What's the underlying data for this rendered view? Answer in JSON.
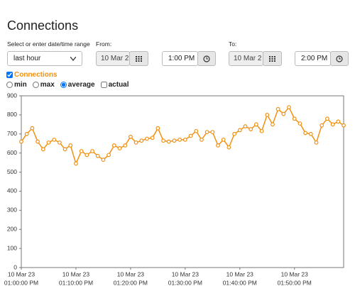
{
  "header": {
    "title": "Connections"
  },
  "range": {
    "label": "Select or enter date/time range",
    "preset": "last hour"
  },
  "from": {
    "label": "From:",
    "date": "10 Mar 2",
    "time": "1:00 PM"
  },
  "to": {
    "label": "To:",
    "date": "10 Mar 2",
    "time": "2:00 PM"
  },
  "series_checked": true,
  "aggregations": [
    {
      "label": "min",
      "control": "radio",
      "checked": false
    },
    {
      "label": "max",
      "control": "radio",
      "checked": false
    },
    {
      "label": "average",
      "control": "radio",
      "checked": true
    },
    {
      "label": "actual",
      "control": "checkbox",
      "checked": false
    }
  ],
  "chart_data": {
    "type": "line",
    "x": [
      "01:00:00 PM",
      "01:01:00 PM",
      "01:02:00 PM",
      "01:03:00 PM",
      "01:04:00 PM",
      "01:05:00 PM",
      "01:06:00 PM",
      "01:07:00 PM",
      "01:08:00 PM",
      "01:09:00 PM",
      "01:10:00 PM",
      "01:11:00 PM",
      "01:12:00 PM",
      "01:13:00 PM",
      "01:14:00 PM",
      "01:15:00 PM",
      "01:16:00 PM",
      "01:17:00 PM",
      "01:18:00 PM",
      "01:19:00 PM",
      "01:20:00 PM",
      "01:21:00 PM",
      "01:22:00 PM",
      "01:23:00 PM",
      "01:24:00 PM",
      "01:25:00 PM",
      "01:26:00 PM",
      "01:27:00 PM",
      "01:28:00 PM",
      "01:29:00 PM",
      "01:30:00 PM",
      "01:31:00 PM",
      "01:32:00 PM",
      "01:33:00 PM",
      "01:34:00 PM",
      "01:35:00 PM",
      "01:36:00 PM",
      "01:37:00 PM",
      "01:38:00 PM",
      "01:39:00 PM",
      "01:40:00 PM",
      "01:41:00 PM",
      "01:42:00 PM",
      "01:43:00 PM",
      "01:44:00 PM",
      "01:45:00 PM",
      "01:46:00 PM",
      "01:47:00 PM",
      "01:48:00 PM",
      "01:49:00 PM",
      "01:50:00 PM",
      "01:51:00 PM",
      "01:52:00 PM",
      "01:53:00 PM",
      "01:54:00 PM",
      "01:55:00 PM",
      "01:56:00 PM",
      "01:57:00 PM",
      "01:58:00 PM",
      "01:59:00 PM"
    ],
    "series": [
      {
        "name": "Connections",
        "color": "#f29111",
        "values": [
          660,
          700,
          730,
          660,
          620,
          655,
          670,
          655,
          620,
          640,
          545,
          610,
          590,
          610,
          585,
          565,
          590,
          640,
          625,
          640,
          685,
          655,
          665,
          675,
          680,
          730,
          665,
          660,
          665,
          670,
          670,
          690,
          715,
          670,
          710,
          710,
          640,
          670,
          630,
          700,
          720,
          740,
          725,
          750,
          715,
          800,
          750,
          830,
          805,
          840,
          780,
          755,
          705,
          700,
          655,
          745,
          780,
          750,
          765,
          745
        ]
      }
    ],
    "ylim": [
      0,
      900
    ],
    "yticks": [
      0,
      100,
      200,
      300,
      400,
      500,
      600,
      700,
      800,
      900
    ],
    "xticks": [
      {
        "date": "10 Mar 23",
        "time": "01:00:00 PM"
      },
      {
        "date": "10 Mar 23",
        "time": "01:10:00 PM"
      },
      {
        "date": "10 Mar 23",
        "time": "01:20:00 PM"
      },
      {
        "date": "10 Mar 23",
        "time": "01:30:00 PM"
      },
      {
        "date": "10 Mar 23",
        "time": "01:40:00 PM"
      },
      {
        "date": "10 Mar 23",
        "time": "01:50:00 PM"
      }
    ]
  }
}
